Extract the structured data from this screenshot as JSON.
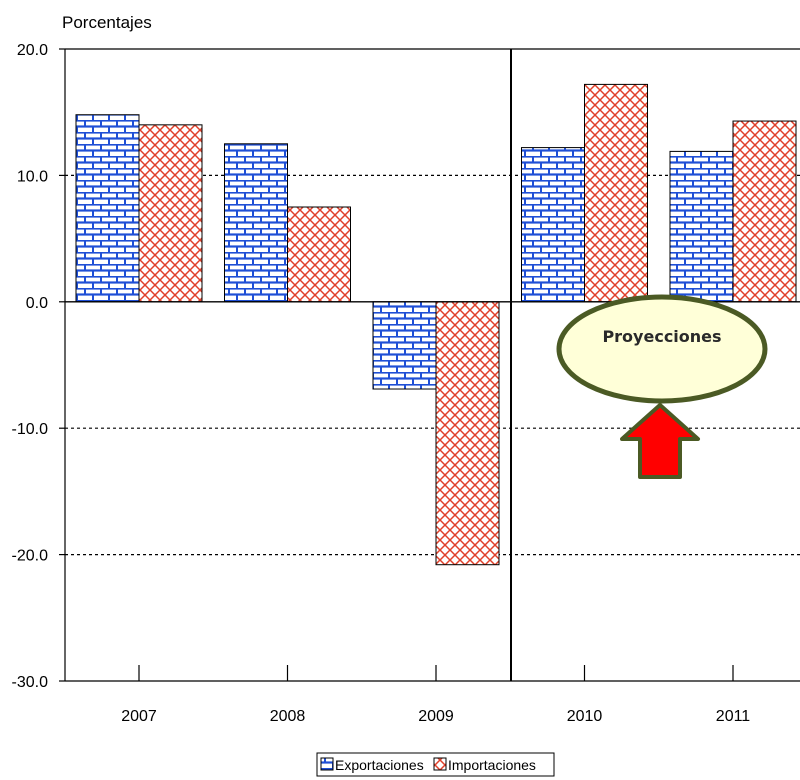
{
  "chart_data": {
    "type": "bar",
    "ylabel": "Porcentajes",
    "categories": [
      "2007",
      "2008",
      "2009",
      "2010",
      "2011"
    ],
    "series": [
      {
        "name": "Exportaciones",
        "values": [
          14.8,
          12.5,
          -6.9,
          12.2,
          11.9
        ],
        "color": "#1f4fd6"
      },
      {
        "name": "Importaciones",
        "values": [
          14.0,
          7.5,
          -20.8,
          17.2,
          14.3
        ],
        "color": "#e0402a"
      }
    ],
    "ylim": [
      -30,
      20
    ],
    "yticks": [
      20,
      10,
      0,
      -10,
      -20,
      -30
    ],
    "ytick_labels": [
      "20.0",
      "10.0",
      "0.0",
      "-10.0",
      "-20.0",
      "-30.0"
    ],
    "gridlines": [
      10,
      -10,
      -20
    ],
    "grid": true,
    "legend_position": "bottom",
    "annotation": {
      "text": "Proyecciones",
      "fill": "#ffffd8",
      "border": "#4b5a24",
      "arrow_color": "#ff0000"
    }
  }
}
